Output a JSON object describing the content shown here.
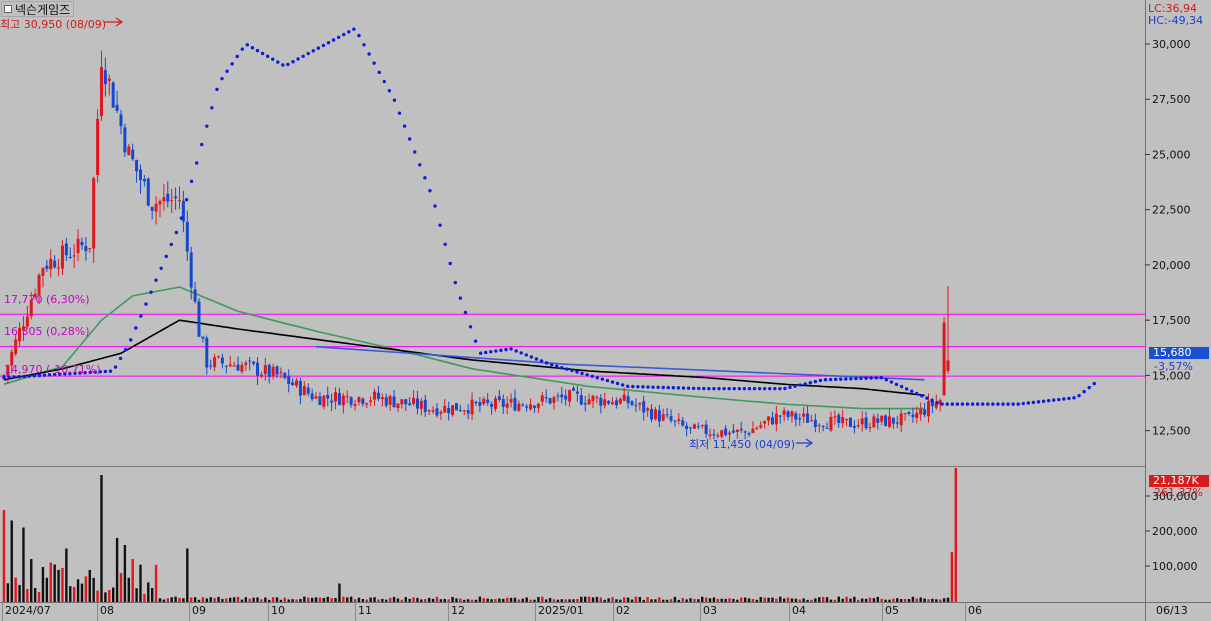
{
  "title": "넥슨게임즈",
  "colors": {
    "background": "#c0c0c0",
    "up": "#e0181e",
    "down": "#1548cc",
    "ma_short": "#000000",
    "ma_long": "#3f9a5e",
    "psar": "#0a1edc",
    "support_line": "#ff00ff",
    "trend_line": "#3a5ad6",
    "price_badge": "#1a4fd0",
    "volume_badge": "#d81c1c"
  },
  "right_info": {
    "lc": "LC:36,94",
    "hc": "HC:-49,34",
    "current_price": "15,680",
    "current_change": "-3,57%",
    "current_volume": "21,187K",
    "volume_change": "261,37%"
  },
  "annotations": {
    "high": "최고 30,950 (08/09)",
    "low": "최저 11,450 (04/09)",
    "level1": "17,770 (6,30%)",
    "level2": "16,305 (0,28%)",
    "level3": "14,970 (-10,71%)"
  },
  "chart_data": [
    {
      "type": "candlestick",
      "title": "넥슨게임즈",
      "x_labels": [
        "2024/07",
        "08",
        "09",
        "10",
        "11",
        "12",
        "2025/01",
        "02",
        "03",
        "04",
        "05",
        "06",
        "06/13"
      ],
      "y_ticks": [
        12500,
        15000,
        17500,
        20000,
        22500,
        25000,
        27500,
        30000
      ],
      "y_tick_labels": [
        "12,500",
        "15,000",
        "17,500",
        "20,000",
        "22,500",
        "25,000",
        "27,500",
        "30,000"
      ],
      "ylim": [
        10900,
        31900
      ],
      "horizontal_levels": [
        17770,
        16305,
        14970
      ],
      "series": [
        {
          "name": "close",
          "key_points": [
            [
              0,
              15000
            ],
            [
              10,
              20000
            ],
            [
              22,
              21000
            ],
            [
              25,
              29500
            ],
            [
              32,
              25000
            ],
            [
              38,
              22800
            ],
            [
              45,
              23000
            ],
            [
              50,
              17000
            ],
            [
              52,
              15600
            ],
            [
              60,
              15500
            ],
            [
              70,
              15000
            ],
            [
              80,
              14000
            ],
            [
              95,
              14000
            ],
            [
              110,
              13500
            ],
            [
              130,
              13700
            ],
            [
              145,
              14000
            ],
            [
              160,
              13800
            ],
            [
              176,
              12500
            ],
            [
              190,
              12400
            ],
            [
              199,
              13200
            ],
            [
              215,
              12800
            ],
            [
              232,
              13000
            ],
            [
              240,
              13900
            ],
            [
              242,
              15680
            ]
          ]
        },
        {
          "name": "ma_short",
          "key_points": [
            [
              0,
              14800
            ],
            [
              15,
              15300
            ],
            [
              30,
              16000
            ],
            [
              45,
              17500
            ],
            [
              60,
              17100
            ],
            [
              90,
              16400
            ],
            [
              120,
              15700
            ],
            [
              150,
              15200
            ],
            [
              180,
              14900
            ],
            [
              200,
              14600
            ],
            [
              220,
              14400
            ],
            [
              236,
              14100
            ]
          ]
        },
        {
          "name": "ma_long",
          "key_points": [
            [
              0,
              14600
            ],
            [
              15,
              15400
            ],
            [
              25,
              17500
            ],
            [
              33,
              18600
            ],
            [
              45,
              19000
            ],
            [
              60,
              17900
            ],
            [
              80,
              17000
            ],
            [
              100,
              16200
            ],
            [
              120,
              15300
            ],
            [
              150,
              14500
            ],
            [
              180,
              14000
            ],
            [
              200,
              13700
            ],
            [
              220,
              13500
            ],
            [
              236,
              13500
            ]
          ]
        },
        {
          "name": "psar",
          "key_points": [
            [
              0,
              14900
            ],
            [
              28,
              15200
            ],
            [
              32,
              16400
            ],
            [
              45,
              21800
            ],
            [
              55,
              28200
            ],
            [
              62,
              30000
            ],
            [
              72,
              29000
            ],
            [
              90,
              30700
            ],
            [
              100,
              27500
            ],
            [
              110,
              23000
            ],
            [
              116,
              19000
            ],
            [
              122,
              16000
            ],
            [
              130,
              16200
            ],
            [
              140,
              15500
            ],
            [
              160,
              14500
            ],
            [
              180,
              14400
            ],
            [
              200,
              14400
            ],
            [
              210,
              14800
            ],
            [
              225,
              14900
            ],
            [
              235,
              14100
            ],
            [
              240,
              13700
            ],
            [
              260,
              13700
            ],
            [
              275,
              14000
            ],
            [
              280,
              14700
            ]
          ]
        },
        {
          "name": "trend_line",
          "key_points": [
            [
              80,
              16300
            ],
            [
              145,
              15500
            ],
            [
              236,
              14800
            ]
          ]
        }
      ]
    },
    {
      "type": "bar",
      "title": "volume",
      "y_ticks": [
        100000,
        200000,
        300000
      ],
      "y_tick_labels": [
        "100,000",
        "200,000",
        "300,000"
      ],
      "ylim": [
        0,
        380000
      ],
      "spikes": [
        [
          0,
          260000
        ],
        [
          2,
          230000
        ],
        [
          5,
          210000
        ],
        [
          7,
          120000
        ],
        [
          12,
          110000
        ],
        [
          16,
          150000
        ],
        [
          25,
          360000
        ],
        [
          29,
          180000
        ],
        [
          31,
          160000
        ],
        [
          33,
          120000
        ],
        [
          47,
          150000
        ],
        [
          86,
          50000
        ],
        [
          243,
          140000
        ],
        [
          244,
          380000
        ]
      ],
      "baseline": 8000
    }
  ]
}
